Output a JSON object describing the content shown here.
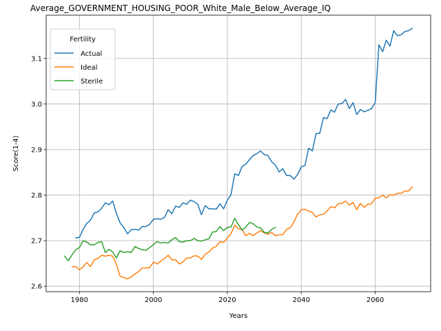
{
  "chart_data": {
    "type": "line",
    "title": "Average_GOVERNMENT_HOUSING_POOR_White_Male_Below_Average_IQ",
    "xlabel": "Years",
    "ylabel": "Score(1-4)",
    "xlim": [
      1971,
      2075
    ],
    "ylim": [
      2.588,
      3.195
    ],
    "xticks": [
      1980,
      2000,
      2020,
      2040,
      2060
    ],
    "yticks": [
      2.6,
      2.7,
      2.8,
      2.9,
      3.0,
      3.1
    ],
    "xtick_labels": [
      "1980",
      "2000",
      "2020",
      "2040",
      "2060"
    ],
    "ytick_labels": [
      "2.6",
      "2.7",
      "2.8",
      "2.9",
      "3.0",
      "3.1"
    ],
    "grid": true,
    "legend": {
      "title": "Fertility",
      "placement": "top-left",
      "entries": [
        "Actual",
        "Ideal",
        "Sterile"
      ]
    },
    "series": [
      {
        "name": "Actual",
        "color": "#1f77b4",
        "x": [
          1979,
          1980,
          1981,
          1982,
          1983,
          1984,
          1985,
          1986,
          1987,
          1988,
          1989,
          1990,
          1991,
          1992,
          1993,
          1994,
          1995,
          1996,
          1997,
          1998,
          1999,
          2000,
          2001,
          2002,
          2003,
          2004,
          2005,
          2006,
          2007,
          2008,
          2009,
          2010,
          2011,
          2012,
          2013,
          2014,
          2015,
          2016,
          2017,
          2018,
          2019,
          2020,
          2021,
          2022,
          2023,
          2024,
          2025,
          2026,
          2027,
          2028,
          2029,
          2030,
          2031,
          2032,
          2033,
          2034,
          2035,
          2036,
          2037,
          2038,
          2039,
          2040,
          2041,
          2042,
          2043,
          2044,
          2045,
          2046,
          2047,
          2048,
          2049,
          2050,
          2051,
          2052,
          2053,
          2054,
          2055,
          2056,
          2057,
          2058,
          2059,
          2060,
          2061,
          2062,
          2063,
          2064,
          2065,
          2066,
          2067,
          2068,
          2069,
          2070
        ],
        "y": [
          2.706,
          2.707,
          2.725,
          2.738,
          2.745,
          2.761,
          2.763,
          2.771,
          2.783,
          2.779,
          2.787,
          2.76,
          2.739,
          2.729,
          2.715,
          2.724,
          2.725,
          2.723,
          2.731,
          2.731,
          2.736,
          2.747,
          2.748,
          2.747,
          2.751,
          2.768,
          2.759,
          2.776,
          2.773,
          2.783,
          2.78,
          2.789,
          2.786,
          2.78,
          2.757,
          2.777,
          2.77,
          2.77,
          2.769,
          2.781,
          2.77,
          2.789,
          2.801,
          2.847,
          2.843,
          2.863,
          2.868,
          2.878,
          2.887,
          2.891,
          2.897,
          2.889,
          2.887,
          2.873,
          2.866,
          2.851,
          2.858,
          2.843,
          2.843,
          2.835,
          2.845,
          2.862,
          2.865,
          2.903,
          2.897,
          2.935,
          2.936,
          2.97,
          2.968,
          2.987,
          2.982,
          3.0,
          3.001,
          3.01,
          2.99,
          3.003,
          2.977,
          2.988,
          2.983,
          2.986,
          2.99,
          3.003,
          3.13,
          3.115,
          3.14,
          3.127,
          3.161,
          3.15,
          3.152,
          3.159,
          3.161,
          3.166
        ]
      },
      {
        "name": "Ideal",
        "color": "#ff7f0e",
        "x": [
          1978,
          1979,
          1980,
          1981,
          1982,
          1983,
          1984,
          1985,
          1986,
          1987,
          1988,
          1989,
          1990,
          1991,
          1992,
          1993,
          1994,
          1995,
          1996,
          1997,
          1998,
          1999,
          2000,
          2001,
          2002,
          2003,
          2004,
          2005,
          2006,
          2007,
          2008,
          2009,
          2010,
          2011,
          2012,
          2013,
          2014,
          2015,
          2016,
          2017,
          2018,
          2019,
          2020,
          2021,
          2022,
          2023,
          2024,
          2025,
          2026,
          2027,
          2028,
          2029,
          2030,
          2031,
          2032,
          2033,
          2034,
          2035,
          2036,
          2037,
          2038,
          2039,
          2040,
          2041,
          2042,
          2043,
          2044,
          2045,
          2046,
          2047,
          2048,
          2049,
          2050,
          2051,
          2052,
          2053,
          2054,
          2055,
          2056,
          2057,
          2058,
          2059,
          2060,
          2061,
          2062,
          2063,
          2064,
          2065,
          2066,
          2067,
          2068,
          2069,
          2070
        ],
        "y": [
          2.643,
          2.643,
          2.636,
          2.643,
          2.652,
          2.643,
          2.658,
          2.661,
          2.668,
          2.666,
          2.668,
          2.666,
          2.648,
          2.622,
          2.619,
          2.616,
          2.62,
          2.627,
          2.632,
          2.64,
          2.64,
          2.641,
          2.653,
          2.649,
          2.655,
          2.661,
          2.668,
          2.658,
          2.658,
          2.649,
          2.653,
          2.662,
          2.662,
          2.667,
          2.666,
          2.659,
          2.67,
          2.675,
          2.684,
          2.687,
          2.698,
          2.696,
          2.706,
          2.715,
          2.734,
          2.726,
          2.724,
          2.711,
          2.716,
          2.711,
          2.717,
          2.722,
          2.717,
          2.714,
          2.718,
          2.711,
          2.713,
          2.713,
          2.725,
          2.728,
          2.741,
          2.758,
          2.768,
          2.769,
          2.765,
          2.762,
          2.752,
          2.757,
          2.758,
          2.765,
          2.775,
          2.772,
          2.781,
          2.782,
          2.787,
          2.778,
          2.784,
          2.768,
          2.782,
          2.773,
          2.78,
          2.781,
          2.793,
          2.794,
          2.8,
          2.794,
          2.801,
          2.8,
          2.804,
          2.804,
          2.809,
          2.809,
          2.818
        ]
      },
      {
        "name": "Sterile",
        "color": "#2ca02c",
        "x": [
          1976,
          1977,
          1978,
          1979,
          1980,
          1981,
          1982,
          1983,
          1984,
          1985,
          1986,
          1987,
          1988,
          1989,
          1990,
          1991,
          1992,
          1993,
          1994,
          1995,
          1996,
          1997,
          1998,
          1999,
          2000,
          2001,
          2002,
          2003,
          2004,
          2005,
          2006,
          2007,
          2008,
          2009,
          2010,
          2011,
          2012,
          2013,
          2014,
          2015,
          2016,
          2017,
          2018,
          2019,
          2020,
          2021,
          2022,
          2023,
          2024,
          2025,
          2026,
          2027,
          2028,
          2029,
          2030,
          2031,
          2032,
          2033
        ],
        "y": [
          2.666,
          2.656,
          2.669,
          2.68,
          2.685,
          2.7,
          2.697,
          2.691,
          2.691,
          2.696,
          2.698,
          2.674,
          2.681,
          2.675,
          2.662,
          2.678,
          2.674,
          2.676,
          2.674,
          2.687,
          2.683,
          2.68,
          2.679,
          2.685,
          2.691,
          2.698,
          2.695,
          2.696,
          2.695,
          2.702,
          2.707,
          2.698,
          2.697,
          2.7,
          2.7,
          2.705,
          2.7,
          2.699,
          2.702,
          2.704,
          2.719,
          2.72,
          2.731,
          2.722,
          2.729,
          2.73,
          2.749,
          2.735,
          2.723,
          2.73,
          2.74,
          2.737,
          2.73,
          2.728,
          2.718,
          2.717,
          2.725,
          2.729
        ]
      }
    ]
  }
}
